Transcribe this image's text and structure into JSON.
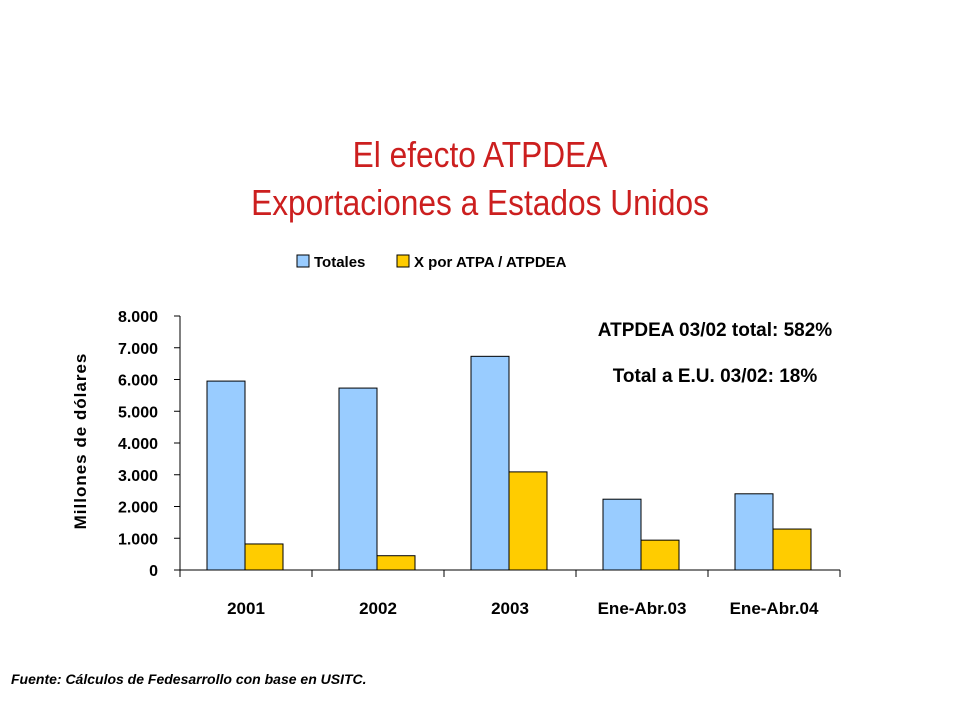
{
  "title_line1": "El efecto ATPDEA",
  "title_line2": "Exportaciones a Estados Unidos",
  "annotations": [
    "ATPDEA 03/02 total: 582%",
    "Total a E.U. 03/02: 18%"
  ],
  "footnote": "Fuente: Cálculos de Fedesarrollo con base en USITC.",
  "chart_data": {
    "type": "bar",
    "categories": [
      "2001",
      "2002",
      "2003",
      "Ene-Abr.03",
      "Ene-Abr.04"
    ],
    "series": [
      {
        "name": "Totales",
        "color": "#99ccff",
        "values": [
          5950,
          5730,
          6730,
          2230,
          2400
        ]
      },
      {
        "name": "X por ATPA / ATPDEA",
        "color": "#ffcc00",
        "values": [
          820,
          450,
          3090,
          940,
          1290
        ]
      }
    ],
    "ylabel": "Millones de dólares",
    "ylim": [
      0,
      8000
    ],
    "yticks": [
      0,
      1000,
      2000,
      3000,
      4000,
      5000,
      6000,
      7000,
      8000
    ],
    "ytick_labels": [
      "0",
      "1.000",
      "2.000",
      "3.000",
      "4.000",
      "5.000",
      "6.000",
      "7.000",
      "8.000"
    ],
    "grid": false,
    "legend_position": "top-center"
  }
}
